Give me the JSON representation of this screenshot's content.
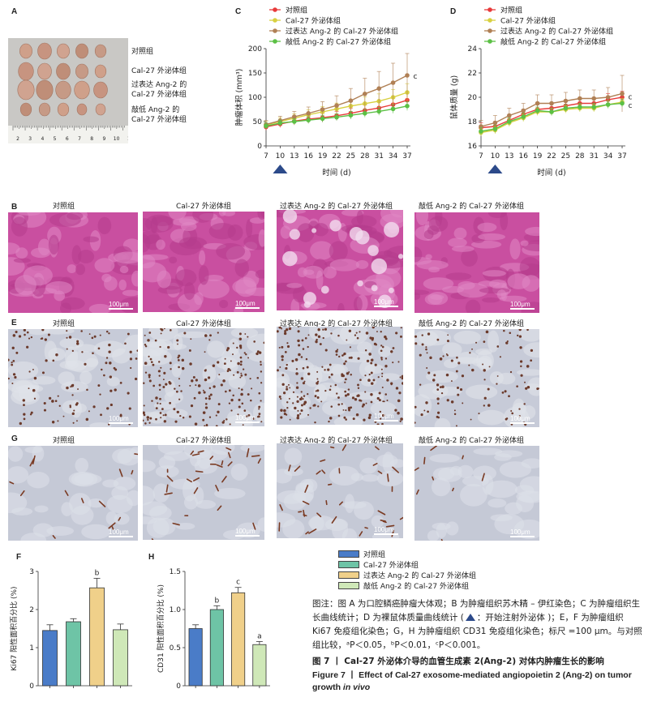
{
  "panel_labels": {
    "A": "A",
    "B": "B",
    "C": "C",
    "D": "D",
    "E": "E",
    "F": "F",
    "G": "G",
    "H": "H"
  },
  "panelA": {
    "groups": [
      "对照组",
      "Cal-27 外泌体组",
      "过表达 Ang-2 的",
      "Cal-27 外泌体组",
      "敲低 Ang-2 的",
      "Cal-27 外泌体组"
    ],
    "ruler_numbers": [
      "2",
      "3",
      "4",
      "5",
      "6",
      "7",
      "8",
      "9",
      "10",
      "1"
    ],
    "colors": {
      "background": "#c9c8c5",
      "tumor": "#c49a82"
    }
  },
  "histology": {
    "group_titles": [
      "对照组",
      "Cal-27 外泌体组",
      "过表达 Ang-2 的 Cal-27 外泌体组",
      "敲低 Ang-2 的 Cal-27 外泌体组"
    ],
    "scale_label": "100μm",
    "colors": {
      "he": "#c94fa0",
      "ki67_bg": "#c7cbd8",
      "ki67_dots": "#6b3a2b",
      "cd31_bg": "#c5c9d6",
      "cd31_marks": "#7a3a22"
    }
  },
  "series_legend": [
    "对照组",
    "Cal-27 外泌体组",
    "过表达 Ang-2 的 Cal-27 外泌体组",
    "敲低 Ang-2 的 Cal-27 外泌体组"
  ],
  "series_colors": [
    "#e83a3a",
    "#d8d040",
    "#b08055",
    "#5cc045"
  ],
  "bar_colors": [
    "#4a7cc8",
    "#6ec4a6",
    "#f0d08a",
    "#cfe8b8"
  ],
  "triangle_color": "#2c4a8a",
  "chart_data": [
    {
      "type": "line",
      "panel": "C",
      "x": [
        7,
        10,
        13,
        16,
        19,
        22,
        25,
        28,
        31,
        34,
        37
      ],
      "xlabel": "时间 (d)",
      "ylabel": "肿瘤体积 (mm³)",
      "ylim": [
        0,
        200
      ],
      "yticks": [
        0,
        50,
        100,
        150,
        200
      ],
      "series": [
        {
          "name": "对照组",
          "values": [
            39,
            45,
            51,
            55,
            58,
            62,
            67,
            73,
            78,
            85,
            94
          ],
          "err": [
            7,
            7,
            8,
            8,
            9,
            9,
            10,
            11,
            12,
            13,
            14
          ]
        },
        {
          "name": "Cal-27 外泌体组",
          "values": [
            43,
            50,
            57,
            64,
            70,
            76,
            82,
            87,
            92,
            100,
            110
          ],
          "err": [
            8,
            8,
            9,
            10,
            11,
            12,
            13,
            14,
            15,
            16,
            18
          ]
        },
        {
          "name": "过表达 Ang-2 的 Cal-27 外泌体组",
          "values": [
            44,
            52,
            60,
            67,
            75,
            83,
            93,
            107,
            118,
            130,
            145
          ],
          "err": [
            8,
            9,
            11,
            13,
            16,
            20,
            25,
            32,
            35,
            40,
            45
          ]
        },
        {
          "name": "敲低 Ang-2 的 Cal-27 外泌体组",
          "values": [
            41,
            47,
            50,
            53,
            56,
            59,
            63,
            67,
            71,
            76,
            82
          ],
          "err": [
            6,
            6,
            6,
            7,
            7,
            7,
            8,
            8,
            8,
            9,
            9
          ]
        }
      ],
      "annotation": "c"
    },
    {
      "type": "line",
      "panel": "D",
      "x": [
        7,
        10,
        13,
        16,
        19,
        22,
        25,
        28,
        31,
        34,
        37
      ],
      "xlabel": "时间 (d)",
      "ylabel": "鼠体质量 (g)",
      "ylim": [
        16,
        24
      ],
      "yticks": [
        16,
        18,
        20,
        22,
        24
      ],
      "series": [
        {
          "name": "对照组",
          "values": [
            17.5,
            17.6,
            18.1,
            18.6,
            19.0,
            19.1,
            19.3,
            19.5,
            19.5,
            19.8,
            20.0
          ],
          "err": [
            0.4,
            0.4,
            0.4,
            0.4,
            0.4,
            0.4,
            0.4,
            0.4,
            0.4,
            0.5,
            0.5
          ]
        },
        {
          "name": "Cal-27 外泌体组",
          "values": [
            17.1,
            17.3,
            17.9,
            18.3,
            18.8,
            18.8,
            19.0,
            19.1,
            19.1,
            19.4,
            19.6
          ],
          "err": [
            0.3,
            0.3,
            0.3,
            0.3,
            0.3,
            0.3,
            0.3,
            0.3,
            0.3,
            0.3,
            0.3
          ]
        },
        {
          "name": "过表达 Ang-2 的 Cal-27 外泌体组",
          "values": [
            17.6,
            17.9,
            18.5,
            18.9,
            19.5,
            19.5,
            19.7,
            19.9,
            19.9,
            20.0,
            20.3
          ],
          "err": [
            0.5,
            0.6,
            0.6,
            0.6,
            0.7,
            0.7,
            0.7,
            0.7,
            0.7,
            0.8,
            1.5
          ]
        },
        {
          "name": "敲低 Ang-2 的 Cal-27 外泌体组",
          "values": [
            17.2,
            17.4,
            18.0,
            18.4,
            18.9,
            18.8,
            19.1,
            19.2,
            19.2,
            19.4,
            19.5
          ],
          "err": [
            0.3,
            0.3,
            0.3,
            0.3,
            0.3,
            0.3,
            0.3,
            0.3,
            0.3,
            0.3,
            0.3
          ]
        }
      ],
      "annotations": [
        "c",
        "c"
      ]
    },
    {
      "type": "bar",
      "panel": "F",
      "ylabel": "Ki67 阳性面积百分比 (%)",
      "ylim": [
        0,
        3
      ],
      "yticks": [
        0,
        1,
        2,
        3
      ],
      "values": [
        1.45,
        1.68,
        2.57,
        1.47
      ],
      "err": [
        0.15,
        0.08,
        0.25,
        0.15
      ],
      "annotations": [
        "",
        "",
        "b",
        ""
      ]
    },
    {
      "type": "bar",
      "panel": "H",
      "ylabel": "CD31 阳性面积百分比 (%)",
      "ylim": [
        0,
        1.5
      ],
      "yticks": [
        0,
        0.5,
        1.0,
        1.5
      ],
      "values": [
        0.75,
        1.0,
        1.22,
        0.54
      ],
      "err": [
        0.05,
        0.05,
        0.07,
        0.04
      ],
      "annotations": [
        "",
        "b",
        "c",
        "a"
      ]
    }
  ],
  "caption": {
    "note": "图注：图 A 为口腔鳞癌肿瘤大体观；B 为肿瘤组织苏木精 – 伊红染色；C 为肿瘤组织生长曲线统计；D 为裸鼠体质量曲线统计 (",
    "note_triangle_suffix": "：开始注射外泌体 )；E，F 为肿瘤组织 Ki67 免疫组化染色；G，H 为肿瘤组织 CD31 免疫组化染色；标尺 =100 μm。与对照组比较，ᵃP＜0.05，ᵇP＜0.01，ᶜP＜0.001。",
    "title_cn": "图 7  丨  Cal-27 外泌体介导的血管生成素 2(Ang-2) 对体内肿瘤生长的影响",
    "title_en_1": "Figure 7  丨  Effect of Cal-27 exosome-mediated angiopoietin 2 (Ang-2) on tumor",
    "title_en_2": "growth",
    "title_en_italic": "in vivo"
  }
}
